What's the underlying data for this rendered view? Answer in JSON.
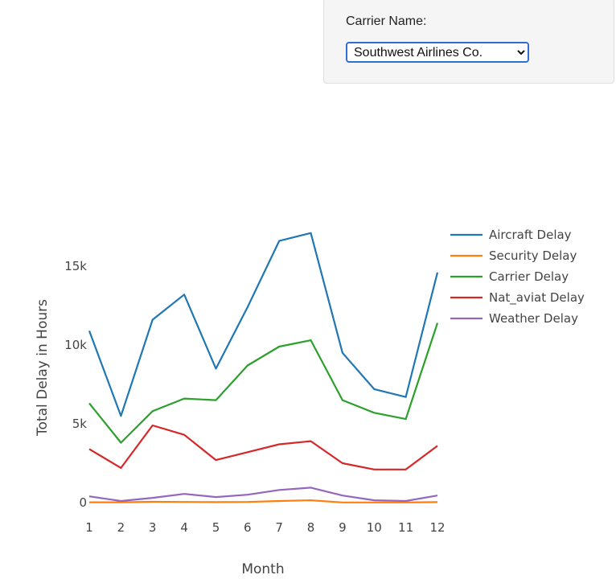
{
  "filter": {
    "label": "Carrier Name:",
    "selected": "Southwest Airlines Co."
  },
  "chart_data": {
    "type": "line",
    "x": [
      1,
      2,
      3,
      4,
      5,
      6,
      7,
      8,
      9,
      10,
      11,
      12
    ],
    "xlabel": "Month",
    "ylabel": "Total Delay in Hours",
    "xlim": [
      1,
      12
    ],
    "ylim": [
      0,
      18000
    ],
    "y_ticks": [
      0,
      5000,
      10000,
      15000
    ],
    "y_tick_labels": [
      "0",
      "5k",
      "10k",
      "15k"
    ],
    "grid": false,
    "legend_position": "top-right",
    "series": [
      {
        "name": "Aircraft Delay",
        "color": "#1f77b4",
        "values": [
          10900,
          5500,
          11600,
          13200,
          8500,
          12400,
          16600,
          17100,
          9500,
          7200,
          6700,
          14600
        ]
      },
      {
        "name": "Security Delay",
        "color": "#ff7f0e",
        "values": [
          20,
          20,
          50,
          40,
          30,
          40,
          100,
          150,
          10,
          10,
          10,
          30
        ]
      },
      {
        "name": "Carrier Delay",
        "color": "#2ca02c",
        "values": [
          6300,
          3800,
          5800,
          6600,
          6500,
          8700,
          9900,
          10300,
          6500,
          5700,
          5300,
          11400
        ]
      },
      {
        "name": "Nat_aviat Delay",
        "color": "#d62728",
        "values": [
          3400,
          2200,
          4900,
          4300,
          2700,
          3200,
          3700,
          3900,
          2500,
          2100,
          2100,
          3600
        ]
      },
      {
        "name": "Weather Delay",
        "color": "#9467bd",
        "values": [
          400,
          100,
          300,
          550,
          350,
          500,
          800,
          950,
          450,
          150,
          100,
          450
        ]
      }
    ]
  }
}
